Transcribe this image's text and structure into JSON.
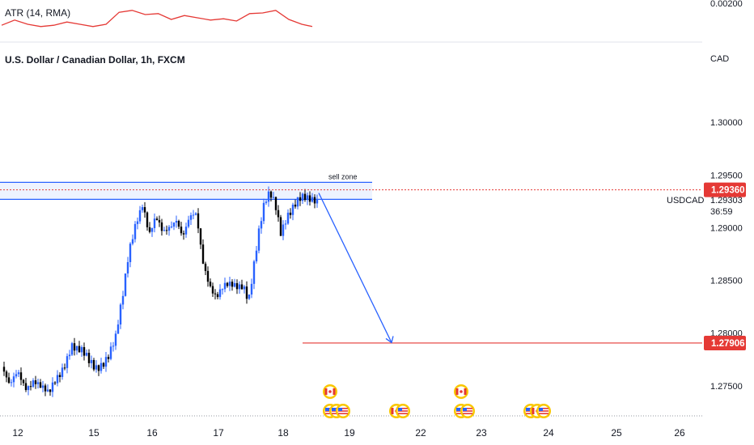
{
  "indicator": {
    "label": "ATR (14, RMA)",
    "value_tick": "0.00200"
  },
  "main_title": "U.S. Dollar / Canadian Dollar, 1h, FXCM",
  "currency": "CAD",
  "symbol": "USDCAD",
  "countdown": "36:59",
  "sell_zone_label": "sell zone",
  "price_badges": {
    "resistance": "1.29360",
    "last": "1.29303",
    "target": "1.27906"
  },
  "colors": {
    "up": "#2962ff",
    "down": "#000000",
    "resistance": "#e53935",
    "zone": "#2962ff",
    "badge": "#e53935"
  },
  "chart_data": {
    "type": "candlestick",
    "title": "U.S. Dollar / Canadian Dollar, 1h, FXCM",
    "symbol": "USDCAD",
    "y_ticks": [
      "1.30000",
      "1.29500",
      "1.29000",
      "1.28500",
      "1.28000",
      "1.27500"
    ],
    "ylim": [
      1.2723,
      1.3047
    ],
    "x_ticks": [
      "12",
      "15",
      "16",
      "17",
      "18",
      "19",
      "22",
      "23",
      "24",
      "25",
      "26"
    ],
    "resistance_level": 1.2936,
    "target_level": 1.27906,
    "last_price": 1.29303,
    "sell_zone": [
      1.293,
      1.294
    ],
    "projection": {
      "from_price": 1.2933,
      "to_price": 1.2791
    },
    "close_path": [
      [
        0,
        1.2768
      ],
      [
        0.6,
        1.2745
      ],
      [
        1.2,
        1.2762
      ],
      [
        1.8,
        1.2752
      ],
      [
        2.4,
        1.2758
      ],
      [
        3.0,
        1.2745
      ],
      [
        3.5,
        1.2738
      ],
      [
        4.0,
        1.2755
      ],
      [
        4.6,
        1.2772
      ],
      [
        5.2,
        1.279
      ],
      [
        5.6,
        1.2782
      ],
      [
        6.0,
        1.2778
      ],
      [
        6.5,
        1.2772
      ],
      [
        7.0,
        1.277
      ],
      [
        7.5,
        1.2775
      ],
      [
        8.0,
        1.278
      ],
      [
        8.5,
        1.2792
      ],
      [
        9.0,
        1.283
      ],
      [
        9.5,
        1.288
      ],
      [
        10.0,
        1.291
      ],
      [
        10.5,
        1.2925
      ],
      [
        11.0,
        1.289
      ],
      [
        11.5,
        1.2905
      ],
      [
        12.0,
        1.2895
      ],
      [
        12.5,
        1.2905
      ],
      [
        13.0,
        1.2912
      ],
      [
        13.5,
        1.289
      ],
      [
        14.0,
        1.2905
      ],
      [
        14.5,
        1.291
      ],
      [
        15.0,
        1.287
      ],
      [
        15.5,
        1.285
      ],
      [
        16.0,
        1.2835
      ],
      [
        16.5,
        1.284
      ],
      [
        17.0,
        1.2842
      ],
      [
        17.5,
        1.2845
      ],
      [
        18.0,
        1.285
      ],
      [
        18.4,
        1.2835
      ],
      [
        18.8,
        1.2865
      ],
      [
        19.2,
        1.2895
      ],
      [
        19.6,
        1.292
      ],
      [
        20.0,
        1.2932
      ],
      [
        20.4,
        1.2925
      ],
      [
        20.8,
        1.29
      ],
      [
        21.2,
        1.2912
      ],
      [
        21.6,
        1.2915
      ],
      [
        22.0,
        1.292
      ],
      [
        22.4,
        1.2925
      ],
      [
        22.8,
        1.2928
      ],
      [
        23.2,
        1.2931
      ],
      [
        23.5,
        1.293
      ]
    ],
    "atr_path": [
      [
        0,
        0.58
      ],
      [
        1,
        0.42
      ],
      [
        2,
        0.55
      ],
      [
        3,
        0.62
      ],
      [
        4,
        0.58
      ],
      [
        5,
        0.48
      ],
      [
        6,
        0.55
      ],
      [
        7,
        0.62
      ],
      [
        8,
        0.55
      ],
      [
        9,
        0.18
      ],
      [
        10,
        0.12
      ],
      [
        11,
        0.25
      ],
      [
        12,
        0.22
      ],
      [
        13,
        0.4
      ],
      [
        14,
        0.28
      ],
      [
        15,
        0.35
      ],
      [
        16,
        0.42
      ],
      [
        17,
        0.38
      ],
      [
        18,
        0.45
      ],
      [
        19,
        0.22
      ],
      [
        20,
        0.2
      ],
      [
        21,
        0.12
      ],
      [
        22,
        0.4
      ],
      [
        23,
        0.55
      ],
      [
        23.8,
        0.62
      ]
    ],
    "events": [
      {
        "day": "15",
        "flags": [
          "US",
          "US",
          "US"
        ],
        "top": [
          "CA"
        ]
      },
      {
        "day": "19",
        "flags": [
          "CA",
          "US"
        ],
        "top": []
      },
      {
        "day": "22",
        "flags": [
          "US",
          "US"
        ],
        "top": [
          "CA"
        ]
      },
      {
        "day": "24",
        "flags": [
          "US",
          "CA",
          "US"
        ],
        "top": []
      }
    ]
  }
}
